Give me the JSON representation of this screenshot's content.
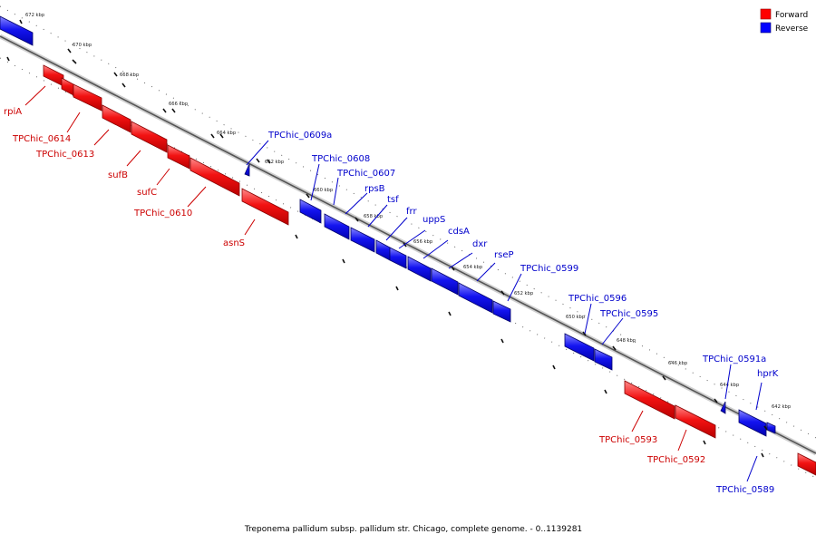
{
  "legend": {
    "forward_label": "Forward",
    "reverse_label": "Reverse",
    "forward_color": "#ff0000",
    "reverse_color": "#0000ff"
  },
  "caption": "Treponema pallidum subsp. pallidum str. Chicago, complete genome. - 0..1139281",
  "ticks": [
    "672 kbp",
    "670 kbp",
    "668 kbp",
    "666 kbp",
    "664 kbp",
    "662 kbp",
    "660 kbp",
    "658 kbp",
    "656 kbp",
    "654 kbp",
    "652 kbp",
    "650 kbp",
    "648 kbp",
    "646 kbp",
    "644 kbp",
    "642 kbp"
  ],
  "forward_gene_labels": [
    "rpiA",
    "TPChic_0614",
    "TPChic_0613",
    "sufB",
    "sufC",
    "TPChic_0610",
    "asnS",
    "TPChic_0593",
    "TPChic_0592"
  ],
  "reverse_gene_labels": [
    "TPChic_0609a",
    "TPChic_0608",
    "TPChic_0607",
    "rpsB",
    "tsf",
    "frr",
    "uppS",
    "cdsA",
    "dxr",
    "rseP",
    "TPChic_0599",
    "TPChic_0596",
    "TPChic_0595",
    "TPChic_0591a",
    "hprK",
    "TPChic_0589"
  ]
}
